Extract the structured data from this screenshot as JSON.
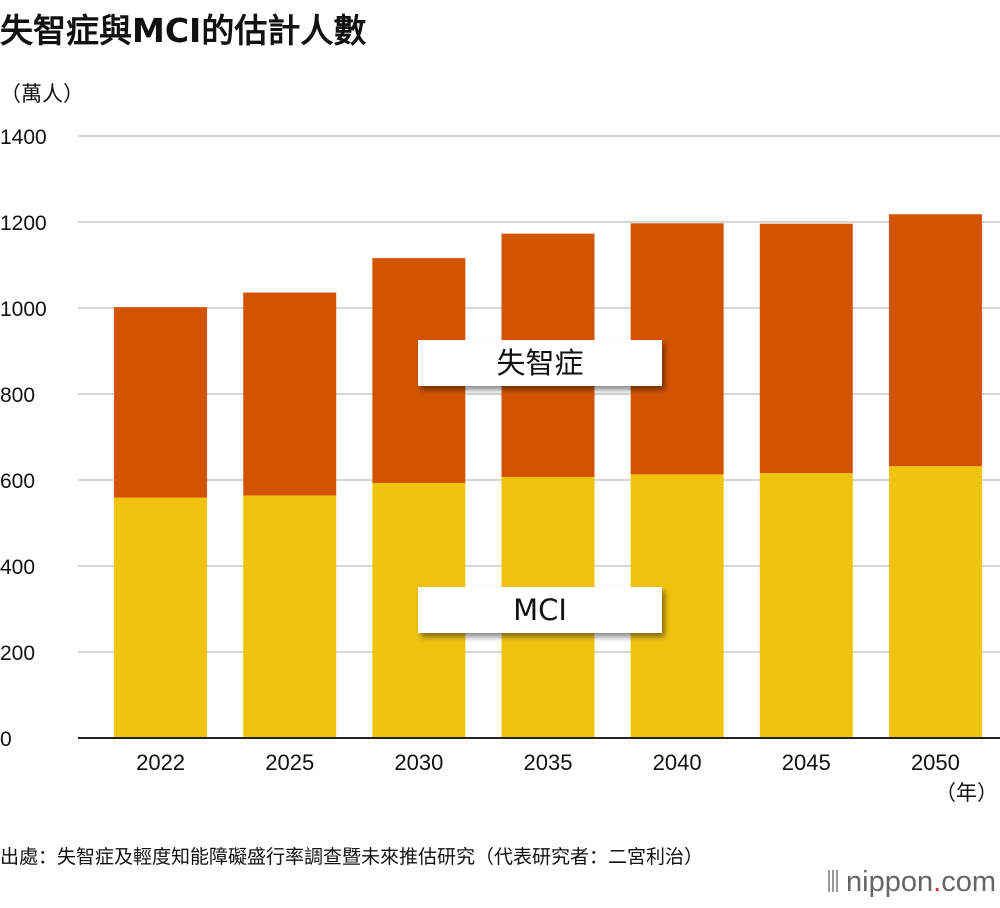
{
  "chart_data": {
    "type": "bar",
    "stacked": true,
    "title": "失智症與MCI的估計人數",
    "ylabel": "（萬人）",
    "xlabel": "（年）",
    "categories": [
      "2022",
      "2025",
      "2030",
      "2035",
      "2040",
      "2045",
      "2050"
    ],
    "series": [
      {
        "name": "MCI",
        "values": [
          559,
          564,
          593,
          607,
          613,
          616,
          632
        ],
        "color": "#f0c30f"
      },
      {
        "name": "失智症",
        "values": [
          443,
          472,
          523,
          566,
          584,
          580,
          586
        ],
        "color": "#d35400"
      }
    ],
    "ylim": [
      0,
      1400
    ],
    "yticks": [
      "0",
      "200",
      "400",
      "600",
      "800",
      "1000",
      "1200",
      "1400"
    ],
    "grid": true
  },
  "source": "出處：失智症及輕度知能障礙盛行率調查暨未來推估研究（代表研究者：二宮利治）",
  "brand": {
    "name": "nippon",
    "dot": ".",
    "tld": "com"
  }
}
